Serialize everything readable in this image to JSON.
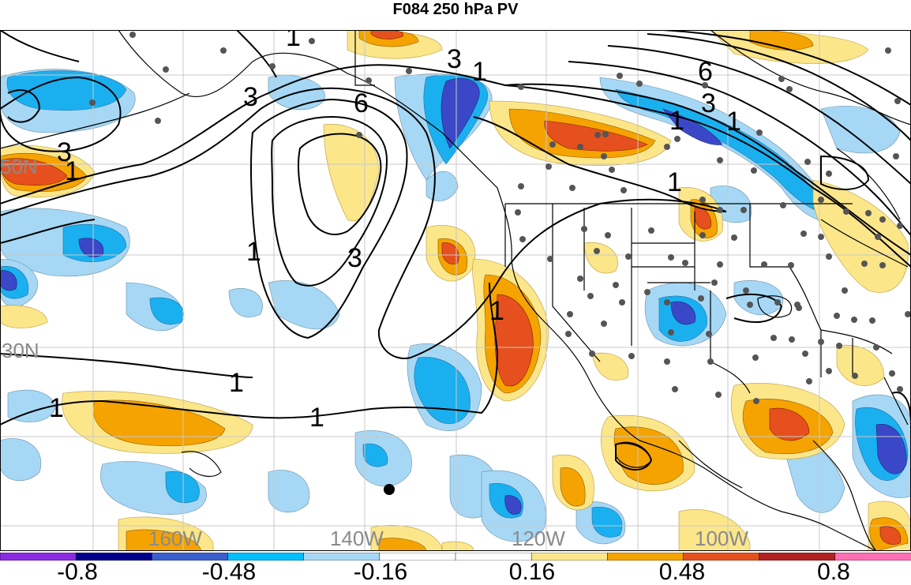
{
  "title": "F084 250 hPa PV",
  "lat_labels": [
    "50N",
    "30N"
  ],
  "lon_labels": [
    "160W",
    "140W",
    "120W",
    "100W"
  ],
  "contour_labels": [
    "1",
    "3",
    "6"
  ],
  "colorbar": {
    "tick_labels": [
      "-0.8",
      "-0.48",
      "-0.16",
      "0.16",
      "0.48",
      "0.8"
    ],
    "colors": [
      "#8a2be2",
      "#00008b",
      "#3a5fcd",
      "#00bfff",
      "#a6d8f5",
      "#ffffff",
      "#ffffff",
      "#fce68a",
      "#f5a300",
      "#e6501e",
      "#b22222",
      "#ff6eb4"
    ]
  },
  "colors": {
    "strong_negative": "#3a48c8",
    "negative": "#1ab0f0",
    "weak_negative": "#a6d8f5",
    "weak_positive": "#fce68a",
    "positive": "#f5a300",
    "strong_positive": "#e6501e"
  },
  "marker": "filled-circle"
}
